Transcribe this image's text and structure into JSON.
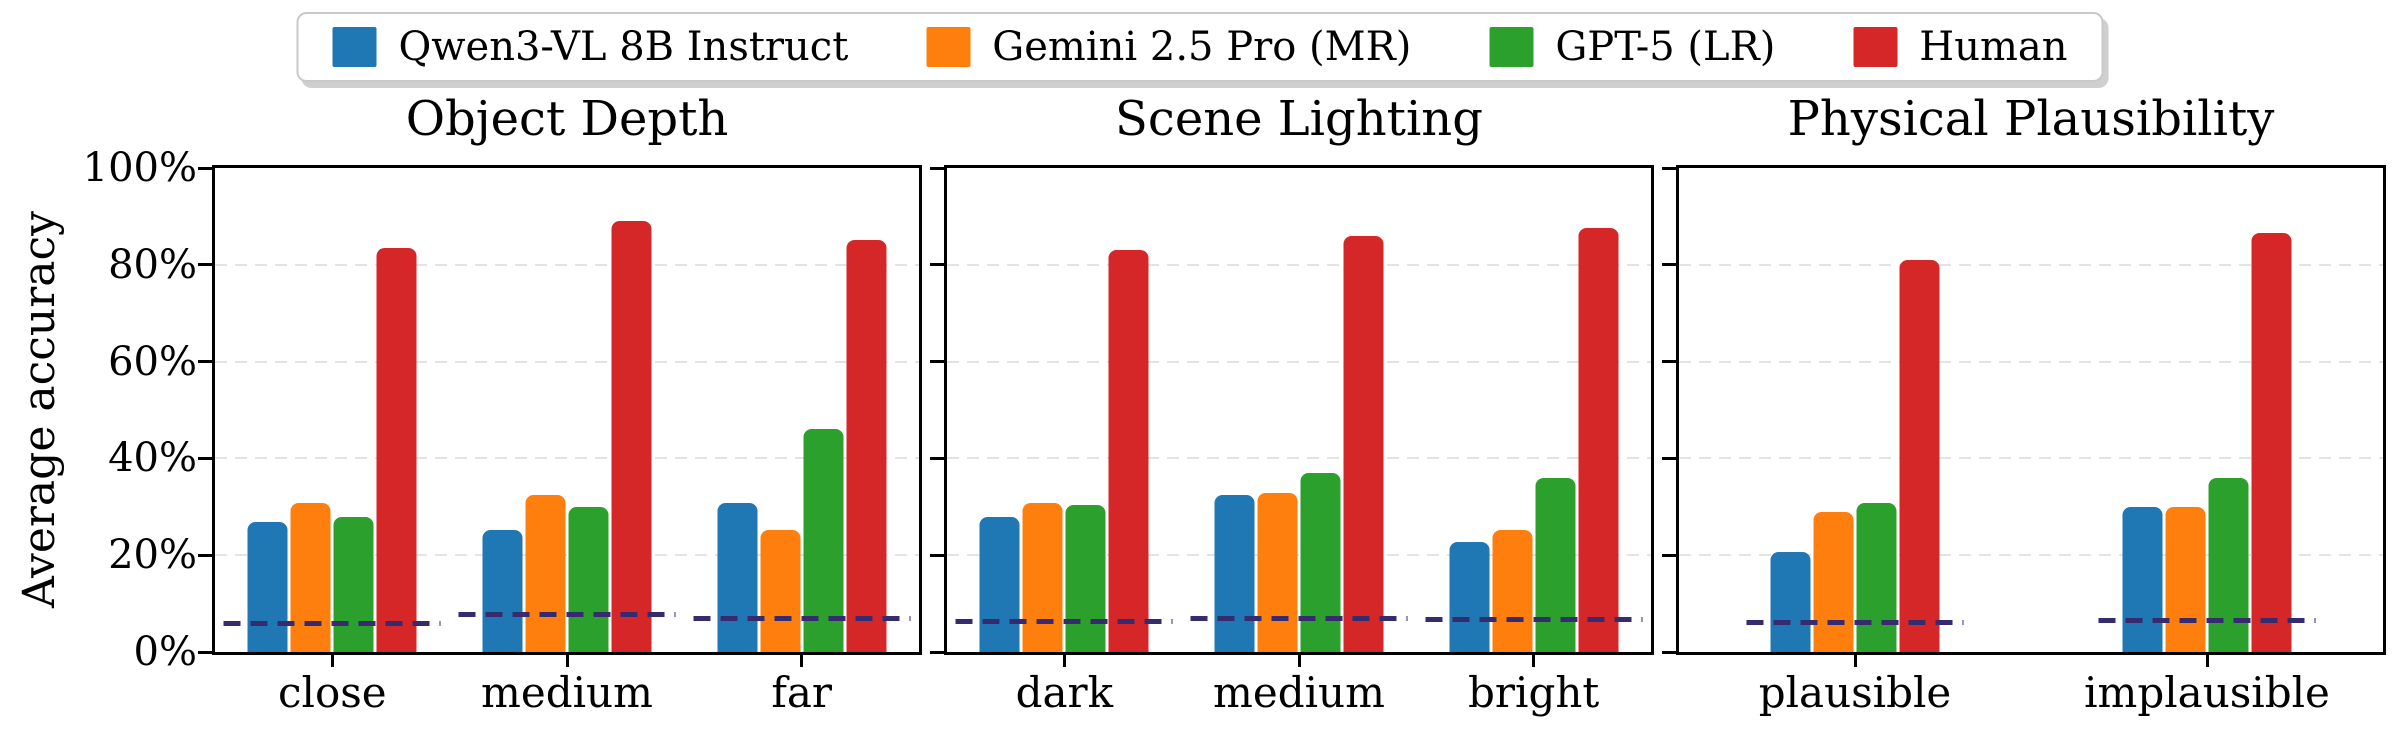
{
  "figure": {
    "ylabel": "Average accuracy",
    "ylim": [
      0,
      100
    ],
    "y_tick_labels": [
      "0%",
      "20%",
      "40%",
      "60%",
      "80%",
      "100%"
    ],
    "y_tick_values": [
      0,
      20,
      40,
      60,
      80,
      100
    ],
    "grid": true,
    "grid_color": "#e3e3e3",
    "chance_line_color": "#362b6f",
    "background_color": "#ffffff"
  },
  "legend": {
    "position": "top center",
    "items": [
      {
        "label": "Qwen3-VL 8B Instruct",
        "color": "#1f77b4"
      },
      {
        "label": "Gemini 2.5 Pro (MR)",
        "color": "#ff7f0e"
      },
      {
        "label": "GPT-5 (LR)",
        "color": "#2ca02c"
      },
      {
        "label": "Human",
        "color": "#d62728"
      }
    ]
  },
  "chart_data": [
    {
      "type": "bar",
      "title": "Object Depth",
      "categories": [
        "close",
        "medium",
        "far"
      ],
      "series": [
        {
          "name": "Qwen3-VL 8B Instruct",
          "color": "#1f77b4",
          "values": [
            26.5,
            25.0,
            30.5
          ]
        },
        {
          "name": "Gemini 2.5 Pro (MR)",
          "color": "#ff7f0e",
          "values": [
            30.5,
            32.0,
            25.0
          ]
        },
        {
          "name": "GPT-5 (LR)",
          "color": "#2ca02c",
          "values": [
            27.5,
            29.5,
            45.5
          ]
        },
        {
          "name": "Human",
          "color": "#d62728",
          "values": [
            82.5,
            88.0,
            84.0
          ]
        }
      ],
      "chance_line_values": [
        7.0,
        8.5,
        8.0
      ],
      "ylabel": "Average accuracy",
      "ylim": [
        0,
        100
      ],
      "grid": true,
      "legend_position": "top center shared"
    },
    {
      "type": "bar",
      "title": "Scene Lighting",
      "categories": [
        "dark",
        "medium",
        "bright"
      ],
      "series": [
        {
          "name": "Qwen3-VL 8B Instruct",
          "color": "#1f77b4",
          "values": [
            27.5,
            32.0,
            22.5
          ]
        },
        {
          "name": "Gemini 2.5 Pro (MR)",
          "color": "#ff7f0e",
          "values": [
            30.5,
            32.5,
            25.0
          ]
        },
        {
          "name": "GPT-5 (LR)",
          "color": "#2ca02c",
          "values": [
            30.0,
            36.5,
            35.5
          ]
        },
        {
          "name": "Human",
          "color": "#d62728",
          "values": [
            82.0,
            85.0,
            86.5
          ]
        }
      ],
      "chance_line_values": [
        7.5,
        8.0,
        7.5
      ],
      "ylabel": "Average accuracy",
      "ylim": [
        0,
        100
      ],
      "grid": true,
      "legend_position": "top center shared"
    },
    {
      "type": "bar",
      "title": "Physical Plausibility",
      "categories": [
        "plausible",
        "implausible"
      ],
      "series": [
        {
          "name": "Qwen3-VL 8B Instruct",
          "color": "#1f77b4",
          "values": [
            20.5,
            29.5
          ]
        },
        {
          "name": "Gemini 2.5 Pro (MR)",
          "color": "#ff7f0e",
          "values": [
            28.5,
            29.5
          ]
        },
        {
          "name": "GPT-5 (LR)",
          "color": "#2ca02c",
          "values": [
            30.5,
            35.5
          ]
        },
        {
          "name": "Human",
          "color": "#d62728",
          "values": [
            80.0,
            85.5
          ]
        }
      ],
      "chance_line_values": [
        7.5,
        7.5
      ],
      "ylabel": "Average accuracy",
      "ylim": [
        0,
        100
      ],
      "grid": true,
      "legend_position": "top center shared"
    }
  ]
}
